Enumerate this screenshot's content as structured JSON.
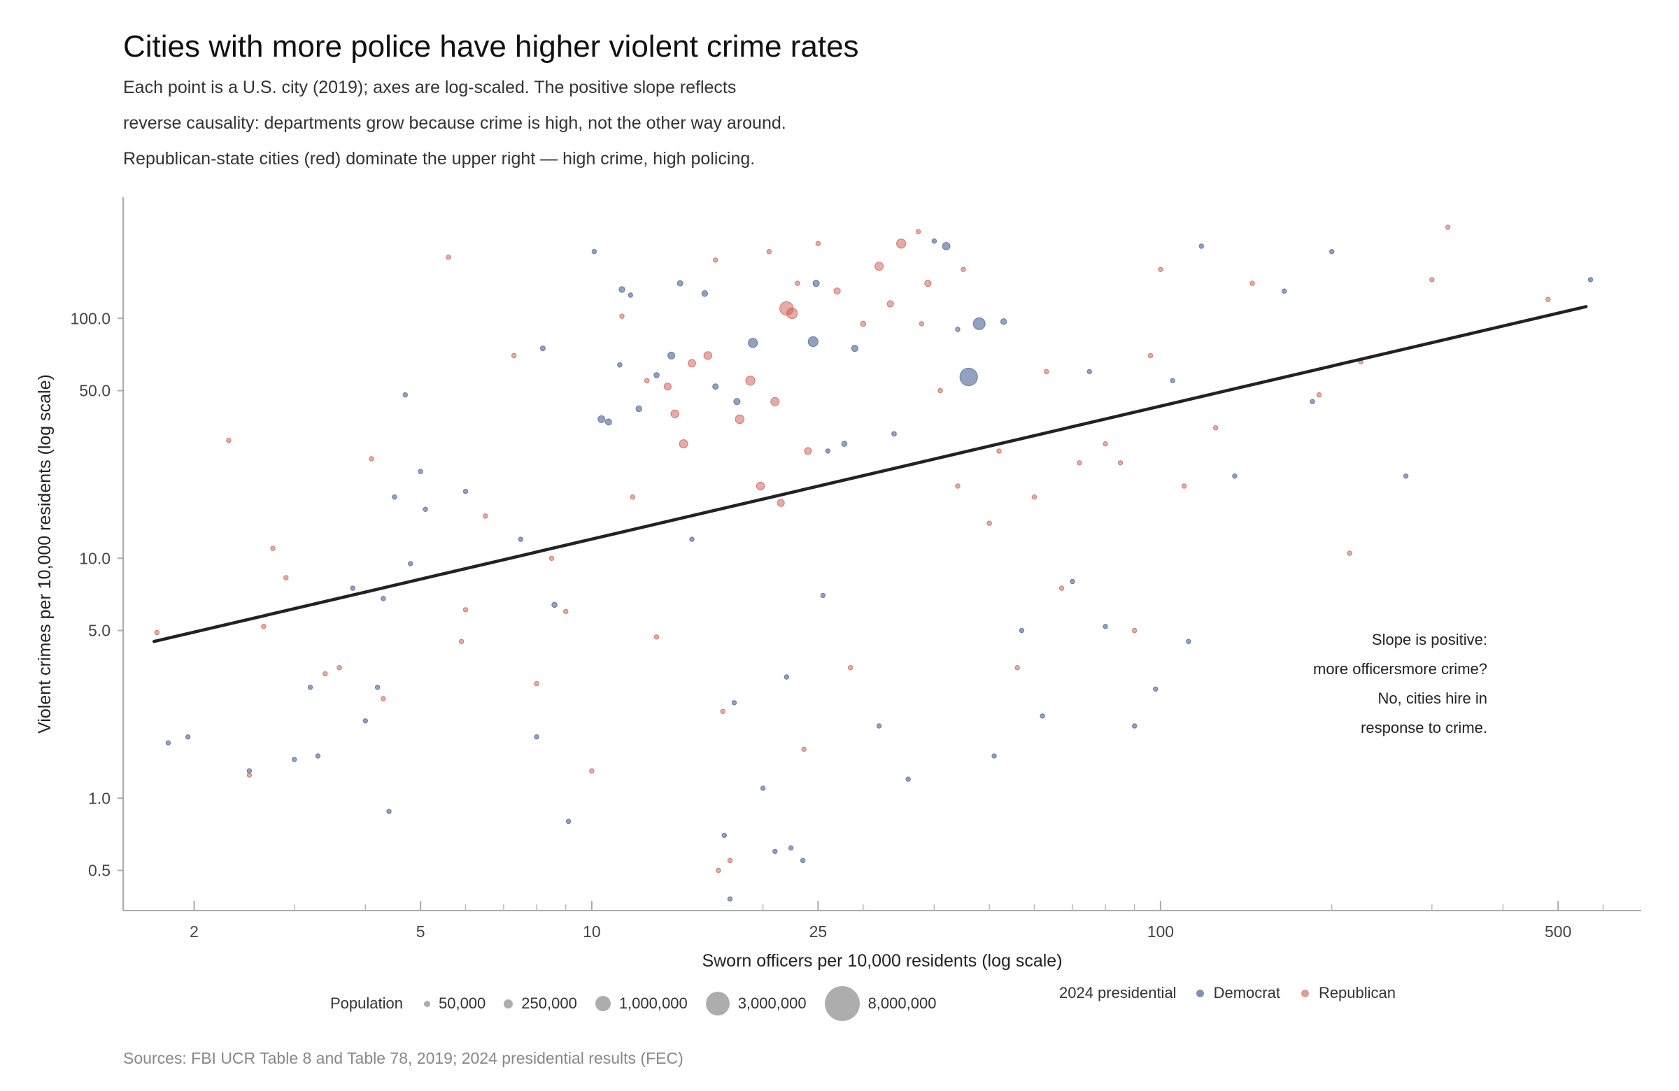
{
  "title": "Cities with more police have higher violent crime rates",
  "subtitle_lines": [
    "Each point is a U.S. city (2019); axes are log-scaled. The positive slope reflects",
    "reverse causality: departments grow because crime is high, not the other way around.",
    "Republican-state cities (red) dominate the upper right — high crime, high policing."
  ],
  "source": "Sources: FBI UCR Table 8 and Table 78, 2019; 2024 presidential results (FEC)",
  "colors": {
    "democrat": "#4a6396",
    "republican": "#cc5a4e",
    "trend": "#222222",
    "axis": "#aaaaaa",
    "size_legend": "#999999"
  },
  "chart_data": {
    "type": "scatter",
    "x_scale": "log",
    "y_scale": "log",
    "xlabel": "Sworn officers per 10,000 residents (log scale)",
    "ylabel": "Violent crimes per 10,000 residents (log scale)",
    "xlim": [
      1.5,
      700
    ],
    "ylim": [
      0.34,
      320
    ],
    "x_ticks": [
      2,
      5,
      10,
      25,
      100,
      500
    ],
    "x_tick_labels": [
      "2",
      "5",
      "10",
      "25",
      "100",
      "500"
    ],
    "x_minor_ticks": [
      3,
      4,
      6,
      7,
      8,
      9,
      20,
      30,
      40,
      50,
      60,
      70,
      80,
      90,
      200,
      300,
      400,
      600
    ],
    "y_ticks": [
      0.5,
      1.0,
      5.0,
      10.0,
      50.0,
      100.0
    ],
    "y_tick_labels": [
      "0.5",
      "1.0",
      "5.0",
      "10.0",
      "50.0",
      "100.0"
    ],
    "grid": false,
    "trend_line": {
      "x": [
        1.7,
        560
      ],
      "y": [
        4.5,
        112
      ]
    },
    "annotation": [
      "Slope is positive:",
      "more officersmore crime?",
      "No, cities hire in",
      "response to crime."
    ],
    "series_names": {
      "democrat": "Democrat",
      "republican": "Republican"
    },
    "series": [
      {
        "name": "Democrat",
        "party": "D",
        "points": [
          [
            1.8,
            1.7,
            20000
          ],
          [
            1.95,
            1.8,
            15000
          ],
          [
            2.5,
            1.3,
            12000
          ],
          [
            3.0,
            1.45,
            15000
          ],
          [
            3.2,
            2.9,
            25000
          ],
          [
            3.3,
            1.5,
            12000
          ],
          [
            3.8,
            7.5,
            35000
          ],
          [
            4.0,
            2.1,
            20000
          ],
          [
            4.2,
            2.9,
            80000
          ],
          [
            4.3,
            6.8,
            90000
          ],
          [
            4.4,
            0.88,
            20000
          ],
          [
            4.5,
            18,
            40000
          ],
          [
            4.7,
            48,
            40000
          ],
          [
            4.8,
            9.5,
            15000
          ],
          [
            5.0,
            23,
            45000
          ],
          [
            5.1,
            16,
            45000
          ],
          [
            6.0,
            19,
            30000
          ],
          [
            7.5,
            12,
            60000
          ],
          [
            8.0,
            1.8,
            18000
          ],
          [
            8.2,
            75,
            180000
          ],
          [
            8.6,
            6.4,
            200000
          ],
          [
            9.1,
            0.8,
            14000
          ],
          [
            10.1,
            190,
            20000
          ],
          [
            10.4,
            38,
            350000
          ],
          [
            10.7,
            37,
            280000
          ],
          [
            11.2,
            64,
            150000
          ],
          [
            11.3,
            132,
            250000
          ],
          [
            11.7,
            125,
            100000
          ],
          [
            12.1,
            42,
            250000
          ],
          [
            13.0,
            58,
            200000
          ],
          [
            13.8,
            70,
            350000
          ],
          [
            14.3,
            140,
            220000
          ],
          [
            15.0,
            12,
            120000
          ],
          [
            15.8,
            127,
            250000
          ],
          [
            16.5,
            52,
            220000
          ],
          [
            17.1,
            0.7,
            12000
          ],
          [
            17.5,
            0.38,
            10000
          ],
          [
            17.8,
            2.5,
            25000
          ],
          [
            18.0,
            45,
            300000
          ],
          [
            19.2,
            79,
            600000
          ],
          [
            20.0,
            1.1,
            18000
          ],
          [
            21.0,
            0.6,
            12000
          ],
          [
            22.0,
            3.2,
            50000
          ],
          [
            22.4,
            0.62,
            15000
          ],
          [
            23.5,
            0.55,
            18000
          ],
          [
            24.5,
            80,
            700000
          ],
          [
            24.8,
            140,
            300000
          ],
          [
            25.5,
            7,
            80000
          ],
          [
            26.0,
            28,
            120000
          ],
          [
            27.8,
            30,
            200000
          ],
          [
            29.0,
            75,
            300000
          ],
          [
            32.0,
            2.0,
            40000
          ],
          [
            34.0,
            33,
            160000
          ],
          [
            36.0,
            1.2,
            30000
          ],
          [
            40.0,
            210,
            150000
          ],
          [
            42.0,
            200,
            400000
          ],
          [
            44.0,
            90,
            120000
          ],
          [
            46.0,
            57,
            2200000
          ],
          [
            48.0,
            95,
            1000000
          ],
          [
            51.0,
            1.5,
            15000
          ],
          [
            53.0,
            97,
            250000
          ],
          [
            57.0,
            5.0,
            20000
          ],
          [
            62.0,
            2.2,
            20000
          ],
          [
            70.0,
            8.0,
            30000
          ],
          [
            75.0,
            60,
            40000
          ],
          [
            80.0,
            5.2,
            25000
          ],
          [
            90.0,
            2.0,
            20000
          ],
          [
            98.0,
            2.85,
            16000
          ],
          [
            105.0,
            55,
            20000
          ],
          [
            112.0,
            4.5,
            18000
          ],
          [
            118.0,
            200,
            15000
          ],
          [
            135.0,
            22,
            15000
          ],
          [
            165.0,
            130,
            15000
          ],
          [
            185.0,
            45,
            15000
          ],
          [
            200.0,
            190,
            15000
          ],
          [
            270.0,
            22,
            15000
          ],
          [
            570.0,
            145,
            15000
          ]
        ]
      },
      {
        "name": "Republican",
        "party": "R",
        "points": [
          [
            1.72,
            4.9,
            15000
          ],
          [
            2.3,
            31,
            20000
          ],
          [
            2.5,
            1.25,
            15000
          ],
          [
            2.65,
            5.2,
            12000
          ],
          [
            2.75,
            11,
            15000
          ],
          [
            2.9,
            8.3,
            15000
          ],
          [
            3.4,
            3.3,
            12000
          ],
          [
            3.6,
            3.5,
            15000
          ],
          [
            4.1,
            26,
            18000
          ],
          [
            4.3,
            2.6,
            20000
          ],
          [
            5.6,
            180,
            25000
          ],
          [
            5.9,
            4.5,
            40000
          ],
          [
            6.0,
            6.1,
            40000
          ],
          [
            6.5,
            15,
            25000
          ],
          [
            7.3,
            70,
            25000
          ],
          [
            8.0,
            3.0,
            25000
          ],
          [
            8.5,
            10,
            25000
          ],
          [
            9.0,
            6.0,
            60000
          ],
          [
            10.0,
            1.3,
            20000
          ],
          [
            11.3,
            102,
            80000
          ],
          [
            11.8,
            18,
            100000
          ],
          [
            12.5,
            55,
            150000
          ],
          [
            13.0,
            4.7,
            60000
          ],
          [
            13.6,
            52,
            350000
          ],
          [
            14.0,
            40,
            450000
          ],
          [
            14.5,
            30,
            500000
          ],
          [
            15.0,
            65,
            400000
          ],
          [
            16.0,
            70,
            450000
          ],
          [
            16.5,
            175,
            30000
          ],
          [
            16.7,
            0.5,
            18000
          ],
          [
            17.0,
            2.3,
            40000
          ],
          [
            17.5,
            0.55,
            15000
          ],
          [
            18.2,
            38,
            550000
          ],
          [
            19.0,
            55,
            600000
          ],
          [
            19.8,
            20,
            450000
          ],
          [
            20.5,
            190,
            15000
          ],
          [
            21.0,
            45,
            500000
          ],
          [
            21.5,
            17,
            350000
          ],
          [
            22.0,
            110,
            1300000
          ],
          [
            22.5,
            105,
            800000
          ],
          [
            23.0,
            140,
            40000
          ],
          [
            23.6,
            1.6,
            30000
          ],
          [
            24.0,
            28,
            350000
          ],
          [
            25.0,
            205,
            25000
          ],
          [
            27.0,
            130,
            300000
          ],
          [
            28.5,
            3.5,
            30000
          ],
          [
            30.0,
            95,
            200000
          ],
          [
            32.0,
            165,
            500000
          ],
          [
            33.5,
            115,
            300000
          ],
          [
            35.0,
            205,
            600000
          ],
          [
            37.5,
            230,
            15000
          ],
          [
            38.0,
            95,
            80000
          ],
          [
            39.0,
            140,
            300000
          ],
          [
            41.0,
            50,
            100000
          ],
          [
            44.0,
            20,
            60000
          ],
          [
            45.0,
            160,
            70000
          ],
          [
            50.0,
            14,
            40000
          ],
          [
            52.0,
            28,
            40000
          ],
          [
            56.0,
            3.5,
            25000
          ],
          [
            60.0,
            18,
            30000
          ],
          [
            63.0,
            60,
            25000
          ],
          [
            67.0,
            7.5,
            25000
          ],
          [
            72.0,
            25,
            25000
          ],
          [
            80.0,
            30,
            25000
          ],
          [
            85.0,
            25,
            20000
          ],
          [
            90.0,
            5.0,
            20000
          ],
          [
            96.0,
            70,
            20000
          ],
          [
            100.0,
            160,
            20000
          ],
          [
            110.0,
            20,
            20000
          ],
          [
            125.0,
            35,
            15000
          ],
          [
            145.0,
            140,
            15000
          ],
          [
            190.0,
            48,
            15000
          ],
          [
            215.0,
            10.5,
            15000
          ],
          [
            225.0,
            66,
            15000
          ],
          [
            300.0,
            145,
            15000
          ],
          [
            320.0,
            240,
            15000
          ],
          [
            480.0,
            120,
            15000
          ]
        ]
      }
    ]
  },
  "legend": {
    "population_label": "Population",
    "sizes": [
      {
        "label": "50,000",
        "value": 50000
      },
      {
        "label": "250,000",
        "value": 250000
      },
      {
        "label": "1,000,000",
        "value": 1000000
      },
      {
        "label": "3,000,000",
        "value": 3000000
      },
      {
        "label": "8,000,000",
        "value": 8000000
      }
    ],
    "party_label": "2024 presidential",
    "parties": [
      {
        "label": "Democrat",
        "color": "#4a6396"
      },
      {
        "label": "Republican",
        "color": "#cc5a4e"
      }
    ]
  }
}
